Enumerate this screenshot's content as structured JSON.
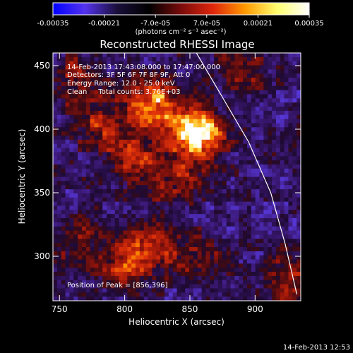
{
  "chart_data": {
    "type": "heatmap",
    "title": "Reconstructed RHESSI Image",
    "xlabel": "Heliocentric X (arcsec)",
    "ylabel": "Heliocentric Y (arcsec)",
    "xlim": [
      745,
      935
    ],
    "ylim": [
      265,
      460
    ],
    "xticks": [
      750,
      800,
      850,
      900
    ],
    "yticks": [
      300,
      350,
      400,
      450
    ],
    "colorbar": {
      "range": [
        -0.00035,
        0.00035
      ],
      "ticks": [
        "-0.00035",
        "-0.00021",
        "-7.0e-05",
        "7.0e-05",
        "0.00021",
        "0.00035"
      ],
      "unit": "(photons cm⁻² s⁻¹ asec⁻²)",
      "stops": [
        "#0000ff",
        "#5533ee",
        "#1a0f3a",
        "#000000",
        "#7a0b0b",
        "#e0260c",
        "#ff9a00",
        "#ffff70",
        "#ffffff"
      ]
    },
    "annotations": [
      "14-Feb-2013 17:43:08.000 to 17:47:00.000",
      "Detectors: 3F 5F 6F 7F 8F 9F, Att 0",
      "Energy Range: 12.0 - 25.0 keV",
      "Clean     Total counts: 3.76E+03"
    ],
    "peak_label": "Position of Peak = [856,396]",
    "peak": [
      856,
      396
    ],
    "sources": [
      {
        "x": 856,
        "y": 396,
        "strength": 1.0
      },
      {
        "x": 822,
        "y": 420,
        "strength": 0.75
      },
      {
        "x": 805,
        "y": 378,
        "strength": 0.5
      },
      {
        "x": 780,
        "y": 405,
        "strength": 0.45
      },
      {
        "x": 760,
        "y": 440,
        "strength": 0.4
      },
      {
        "x": 840,
        "y": 360,
        "strength": 0.4
      },
      {
        "x": 820,
        "y": 310,
        "strength": 0.55
      },
      {
        "x": 800,
        "y": 290,
        "strength": 0.4
      },
      {
        "x": 858,
        "y": 300,
        "strength": 0.3
      },
      {
        "x": 925,
        "y": 280,
        "strength": 0.45
      },
      {
        "x": 890,
        "y": 445,
        "strength": 0.3
      },
      {
        "x": 765,
        "y": 310,
        "strength": 0.3
      }
    ],
    "limb_curve": [
      [
        855,
        460
      ],
      [
        875,
        425
      ],
      [
        895,
        390
      ],
      [
        912,
        350
      ],
      [
        923,
        310
      ],
      [
        932,
        270
      ]
    ],
    "footer_date": "14-Feb-2013 12:53"
  }
}
